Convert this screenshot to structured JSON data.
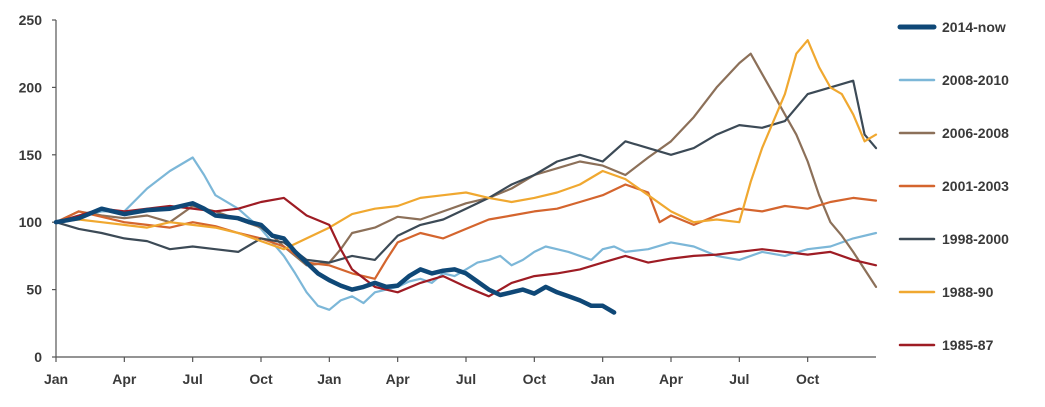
{
  "chart_data": {
    "type": "line",
    "title": "",
    "xlabel": "",
    "ylabel": "",
    "ylim": [
      0,
      250
    ],
    "yticks": [
      0,
      50,
      100,
      150,
      200,
      250
    ],
    "xticks": [
      {
        "label": "Jan",
        "month": 0
      },
      {
        "label": "Apr",
        "month": 3
      },
      {
        "label": "Jul",
        "month": 6
      },
      {
        "label": "Oct",
        "month": 9
      },
      {
        "label": "Jan",
        "month": 12
      },
      {
        "label": "Apr",
        "month": 15
      },
      {
        "label": "Jul",
        "month": 18
      },
      {
        "label": "Oct",
        "month": 21
      },
      {
        "label": "Jan",
        "month": 24
      },
      {
        "label": "Apr",
        "month": 27
      },
      {
        "label": "Jul",
        "month": 30
      },
      {
        "label": "Oct",
        "month": 33
      }
    ],
    "xlim": [
      0,
      36
    ],
    "grid": false,
    "legend_position": "right",
    "series": [
      {
        "name": "2014-now",
        "color": "#0f4877",
        "bold": true,
        "points": [
          [
            0,
            100
          ],
          [
            1,
            103
          ],
          [
            2,
            110
          ],
          [
            3,
            106
          ],
          [
            4,
            109
          ],
          [
            5,
            110
          ],
          [
            6,
            114
          ],
          [
            6.5,
            110
          ],
          [
            7,
            105
          ],
          [
            8,
            103
          ],
          [
            8.5,
            100
          ],
          [
            9,
            98
          ],
          [
            9.5,
            90
          ],
          [
            10,
            88
          ],
          [
            10.5,
            78
          ],
          [
            11,
            70
          ],
          [
            11.5,
            62
          ],
          [
            12,
            57
          ],
          [
            12.5,
            53
          ],
          [
            13,
            50
          ],
          [
            13.5,
            52
          ],
          [
            14,
            55
          ],
          [
            14.5,
            52
          ],
          [
            15,
            53
          ],
          [
            15.5,
            60
          ],
          [
            16,
            65
          ],
          [
            16.5,
            62
          ],
          [
            17,
            64
          ],
          [
            17.5,
            65
          ],
          [
            18,
            62
          ],
          [
            18.5,
            56
          ],
          [
            19,
            50
          ],
          [
            19.5,
            46
          ],
          [
            20,
            48
          ],
          [
            20.5,
            50
          ],
          [
            21,
            47
          ],
          [
            21.5,
            52
          ],
          [
            22,
            48
          ],
          [
            22.5,
            45
          ],
          [
            23,
            42
          ],
          [
            23.5,
            38
          ],
          [
            24,
            38
          ],
          [
            24.5,
            33
          ]
        ]
      },
      {
        "name": "2008-2010",
        "color": "#7cb7d8",
        "points": [
          [
            0,
            100
          ],
          [
            1,
            104
          ],
          [
            2,
            108
          ],
          [
            3,
            108
          ],
          [
            4,
            125
          ],
          [
            5,
            138
          ],
          [
            6,
            148
          ],
          [
            6.5,
            135
          ],
          [
            7,
            120
          ],
          [
            8,
            110
          ],
          [
            9,
            95
          ],
          [
            9.5,
            85
          ],
          [
            10,
            75
          ],
          [
            10.5,
            62
          ],
          [
            11,
            48
          ],
          [
            11.5,
            38
          ],
          [
            12,
            35
          ],
          [
            12.5,
            42
          ],
          [
            13,
            45
          ],
          [
            13.5,
            40
          ],
          [
            14,
            48
          ],
          [
            14.5,
            50
          ],
          [
            15,
            52
          ],
          [
            15.5,
            56
          ],
          [
            16,
            58
          ],
          [
            16.5,
            55
          ],
          [
            17,
            62
          ],
          [
            17.5,
            60
          ],
          [
            18,
            65
          ],
          [
            18.5,
            70
          ],
          [
            19,
            72
          ],
          [
            19.5,
            75
          ],
          [
            20,
            68
          ],
          [
            20.5,
            72
          ],
          [
            21,
            78
          ],
          [
            21.5,
            82
          ],
          [
            22,
            80
          ],
          [
            22.5,
            78
          ],
          [
            23,
            75
          ],
          [
            23.5,
            72
          ],
          [
            24,
            80
          ],
          [
            24.5,
            82
          ],
          [
            25,
            78
          ],
          [
            26,
            80
          ],
          [
            27,
            85
          ],
          [
            28,
            82
          ],
          [
            29,
            75
          ],
          [
            30,
            72
          ],
          [
            31,
            78
          ],
          [
            32,
            75
          ],
          [
            33,
            80
          ],
          [
            34,
            82
          ],
          [
            35,
            88
          ],
          [
            36,
            92
          ]
        ]
      },
      {
        "name": "2006-2008",
        "color": "#8c7059",
        "points": [
          [
            0,
            100
          ],
          [
            1,
            108
          ],
          [
            2,
            105
          ],
          [
            3,
            103
          ],
          [
            4,
            105
          ],
          [
            5,
            100
          ],
          [
            6,
            112
          ],
          [
            7,
            108
          ],
          [
            8,
            102
          ],
          [
            9,
            96
          ],
          [
            9.5,
            90
          ],
          [
            10,
            82
          ],
          [
            11,
            68
          ],
          [
            12,
            70
          ],
          [
            12.5,
            80
          ],
          [
            13,
            92
          ],
          [
            14,
            96
          ],
          [
            15,
            104
          ],
          [
            16,
            102
          ],
          [
            17,
            108
          ],
          [
            18,
            114
          ],
          [
            19,
            118
          ],
          [
            20,
            125
          ],
          [
            21,
            135
          ],
          [
            22,
            140
          ],
          [
            23,
            145
          ],
          [
            24,
            142
          ],
          [
            25,
            135
          ],
          [
            26,
            148
          ],
          [
            27,
            160
          ],
          [
            28,
            178
          ],
          [
            29,
            200
          ],
          [
            30,
            218
          ],
          [
            30.5,
            225
          ],
          [
            31,
            210
          ],
          [
            31.5,
            195
          ],
          [
            32,
            180
          ],
          [
            32.5,
            165
          ],
          [
            33,
            145
          ],
          [
            33.5,
            120
          ],
          [
            34,
            100
          ],
          [
            34.5,
            90
          ],
          [
            35,
            78
          ],
          [
            35.5,
            65
          ],
          [
            36,
            52
          ]
        ]
      },
      {
        "name": "2001-2003",
        "color": "#d4652e",
        "points": [
          [
            0,
            100
          ],
          [
            1,
            108
          ],
          [
            2,
            104
          ],
          [
            3,
            100
          ],
          [
            4,
            98
          ],
          [
            5,
            96
          ],
          [
            6,
            100
          ],
          [
            7,
            97
          ],
          [
            8,
            92
          ],
          [
            9,
            88
          ],
          [
            10,
            82
          ],
          [
            11,
            70
          ],
          [
            12,
            68
          ],
          [
            13,
            62
          ],
          [
            14,
            58
          ],
          [
            14.5,
            72
          ],
          [
            15,
            85
          ],
          [
            16,
            92
          ],
          [
            17,
            88
          ],
          [
            18,
            95
          ],
          [
            19,
            102
          ],
          [
            20,
            105
          ],
          [
            21,
            108
          ],
          [
            22,
            110
          ],
          [
            23,
            115
          ],
          [
            24,
            120
          ],
          [
            25,
            128
          ],
          [
            26,
            122
          ],
          [
            26.5,
            100
          ],
          [
            27,
            105
          ],
          [
            28,
            98
          ],
          [
            29,
            105
          ],
          [
            30,
            110
          ],
          [
            31,
            108
          ],
          [
            32,
            112
          ],
          [
            33,
            110
          ],
          [
            34,
            115
          ],
          [
            35,
            118
          ],
          [
            36,
            116
          ]
        ]
      },
      {
        "name": "1998-2000",
        "color": "#3c4a56",
        "points": [
          [
            0,
            100
          ],
          [
            1,
            95
          ],
          [
            2,
            92
          ],
          [
            3,
            88
          ],
          [
            4,
            86
          ],
          [
            5,
            80
          ],
          [
            6,
            82
          ],
          [
            7,
            80
          ],
          [
            8,
            78
          ],
          [
            9,
            88
          ],
          [
            10,
            85
          ],
          [
            11,
            72
          ],
          [
            12,
            70
          ],
          [
            13,
            75
          ],
          [
            14,
            72
          ],
          [
            15,
            90
          ],
          [
            16,
            98
          ],
          [
            17,
            102
          ],
          [
            18,
            110
          ],
          [
            19,
            118
          ],
          [
            20,
            128
          ],
          [
            21,
            135
          ],
          [
            22,
            145
          ],
          [
            23,
            150
          ],
          [
            24,
            145
          ],
          [
            25,
            160
          ],
          [
            26,
            155
          ],
          [
            27,
            150
          ],
          [
            28,
            155
          ],
          [
            29,
            165
          ],
          [
            30,
            172
          ],
          [
            31,
            170
          ],
          [
            32,
            175
          ],
          [
            33,
            195
          ],
          [
            34,
            200
          ],
          [
            35,
            205
          ],
          [
            35.5,
            165
          ],
          [
            36,
            155
          ]
        ]
      },
      {
        "name": "1988-90",
        "color": "#f0a830",
        "points": [
          [
            0,
            100
          ],
          [
            1,
            102
          ],
          [
            2,
            100
          ],
          [
            3,
            98
          ],
          [
            4,
            96
          ],
          [
            5,
            100
          ],
          [
            6,
            98
          ],
          [
            7,
            96
          ],
          [
            8,
            92
          ],
          [
            9,
            86
          ],
          [
            10,
            80
          ],
          [
            11,
            88
          ],
          [
            12,
            96
          ],
          [
            13,
            106
          ],
          [
            14,
            110
          ],
          [
            15,
            112
          ],
          [
            16,
            118
          ],
          [
            17,
            120
          ],
          [
            18,
            122
          ],
          [
            19,
            118
          ],
          [
            20,
            115
          ],
          [
            21,
            118
          ],
          [
            22,
            122
          ],
          [
            23,
            128
          ],
          [
            24,
            138
          ],
          [
            25,
            132
          ],
          [
            26,
            120
          ],
          [
            27,
            108
          ],
          [
            28,
            100
          ],
          [
            29,
            102
          ],
          [
            30,
            100
          ],
          [
            30.5,
            130
          ],
          [
            31,
            155
          ],
          [
            31.5,
            175
          ],
          [
            32,
            195
          ],
          [
            32.5,
            225
          ],
          [
            33,
            235
          ],
          [
            33.5,
            215
          ],
          [
            34,
            200
          ],
          [
            34.5,
            195
          ],
          [
            35,
            180
          ],
          [
            35.5,
            160
          ],
          [
            36,
            165
          ]
        ]
      },
      {
        "name": "1985-87",
        "color": "#9e1c24",
        "points": [
          [
            0,
            100
          ],
          [
            1,
            105
          ],
          [
            2,
            110
          ],
          [
            3,
            108
          ],
          [
            4,
            110
          ],
          [
            5,
            112
          ],
          [
            6,
            110
          ],
          [
            7,
            108
          ],
          [
            8,
            110
          ],
          [
            9,
            115
          ],
          [
            10,
            118
          ],
          [
            11,
            105
          ],
          [
            12,
            98
          ],
          [
            12.5,
            80
          ],
          [
            13,
            65
          ],
          [
            14,
            52
          ],
          [
            15,
            48
          ],
          [
            16,
            55
          ],
          [
            17,
            60
          ],
          [
            18,
            52
          ],
          [
            19,
            45
          ],
          [
            20,
            55
          ],
          [
            21,
            60
          ],
          [
            22,
            62
          ],
          [
            23,
            65
          ],
          [
            24,
            70
          ],
          [
            25,
            75
          ],
          [
            26,
            70
          ],
          [
            27,
            73
          ],
          [
            28,
            75
          ],
          [
            29,
            76
          ],
          [
            30,
            78
          ],
          [
            31,
            80
          ],
          [
            32,
            78
          ],
          [
            33,
            76
          ],
          [
            34,
            78
          ],
          [
            35,
            72
          ],
          [
            36,
            68
          ]
        ]
      }
    ]
  }
}
